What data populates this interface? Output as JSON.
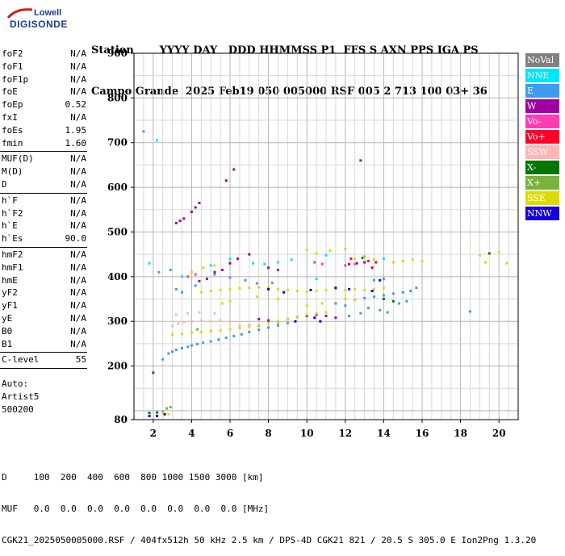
{
  "logo": {
    "line1": "Lowell",
    "line2": "DIGISONDE"
  },
  "header": {
    "labels": "Station       YYYY DAY   DDD HHMMSS P1  FFS S AXN PPS IGA PS",
    "values": "Campo Grande  2025 Feb19 050 005000 RSF 005 2 713 100 03+ 36"
  },
  "params": {
    "group1": [
      {
        "k": "foF2",
        "v": "N/A"
      },
      {
        "k": "foF1",
        "v": "N/A"
      },
      {
        "k": "foF1p",
        "v": "N/A"
      },
      {
        "k": "foE",
        "v": "N/A"
      },
      {
        "k": "foEp",
        "v": "0.52"
      },
      {
        "k": "fxI",
        "v": "N/A"
      },
      {
        "k": "foEs",
        "v": "1.95"
      },
      {
        "k": "fmin",
        "v": "1.60"
      }
    ],
    "group2": [
      {
        "k": "MUF(D)",
        "v": "N/A"
      },
      {
        "k": "M(D)",
        "v": "N/A"
      },
      {
        "k": "D",
        "v": "N/A"
      }
    ],
    "group3": [
      {
        "k": "h`F",
        "v": "N/A"
      },
      {
        "k": "h`F2",
        "v": "N/A"
      },
      {
        "k": "h`E",
        "v": "N/A"
      },
      {
        "k": "h`Es",
        "v": "90.0"
      }
    ],
    "group4": [
      {
        "k": "hmF2",
        "v": "N/A"
      },
      {
        "k": "hmF1",
        "v": "N/A"
      },
      {
        "k": "hmE",
        "v": "N/A"
      },
      {
        "k": "yF2",
        "v": "N/A"
      },
      {
        "k": "yF1",
        "v": "N/A"
      },
      {
        "k": "yE",
        "v": "N/A"
      },
      {
        "k": "B0",
        "v": "N/A"
      },
      {
        "k": "B1",
        "v": "N/A"
      }
    ],
    "group5": [
      {
        "k": "C-level",
        "v": "55"
      }
    ],
    "auto": [
      "Auto:",
      "Artist5",
      "500200"
    ]
  },
  "legend": [
    {
      "label": "NoVal",
      "color": "#808080"
    },
    {
      "label": "NNE",
      "color": "#00e5ff"
    },
    {
      "label": "E",
      "color": "#3c9cf0"
    },
    {
      "label": "W",
      "color": "#a000a0"
    },
    {
      "label": "Vo-",
      "color": "#ff3cb4"
    },
    {
      "label": "Vo+",
      "color": "#ff0028"
    },
    {
      "label": "SSW",
      "color": "#ffb4b4"
    },
    {
      "label": "X-",
      "color": "#007800"
    },
    {
      "label": "X+",
      "color": "#78b43c"
    },
    {
      "label": "SSE",
      "color": "#dcdc00"
    },
    {
      "label": "NNW",
      "color": "#1400dc"
    }
  ],
  "footer": {
    "line1": "D     100  200  400  600  800 1000 1500 3000 [km]",
    "line2": "MUF   0.0  0.0  0.0  0.0  0.0  0.0  0.0  0.0 [MHz]",
    "line3": "CGK21_2025050005000.RSF / 404fx512h 50 kHz 2.5 km / DPS-4D CGK21 821 / 20.5 S 305.0 E Ion2Png 1.3.20"
  },
  "chart_data": {
    "type": "scatter",
    "xlim": [
      1,
      21
    ],
    "ylim": [
      80,
      900
    ],
    "x_ticks": [
      2,
      4,
      6,
      8,
      10,
      12,
      14,
      16,
      18,
      20
    ],
    "y_ticks": [
      80,
      200,
      300,
      400,
      500,
      600,
      700,
      800,
      900
    ],
    "grid": true,
    "legend_position": "right",
    "series": [
      {
        "name": "E",
        "points": [
          [
            2.5,
            215
          ],
          [
            2.8,
            228
          ],
          [
            3.0,
            232
          ],
          [
            3.2,
            236
          ],
          [
            3.5,
            240
          ],
          [
            3.8,
            243
          ],
          [
            4.0,
            246
          ],
          [
            4.3,
            249
          ],
          [
            4.6,
            252
          ],
          [
            5.0,
            255
          ],
          [
            5.4,
            259
          ],
          [
            5.8,
            263
          ],
          [
            6.2,
            267
          ],
          [
            6.6,
            271
          ],
          [
            7.0,
            276
          ],
          [
            7.5,
            281
          ],
          [
            8.0,
            286
          ],
          [
            8.5,
            291
          ],
          [
            9.0,
            296
          ],
          [
            2.3,
            410
          ],
          [
            2.9,
            415
          ],
          [
            3.2,
            372
          ],
          [
            3.5,
            365
          ],
          [
            4.2,
            380
          ],
          [
            4.8,
            395
          ],
          [
            5.2,
            405
          ],
          [
            6.0,
            398
          ],
          [
            6.8,
            392
          ],
          [
            7.4,
            385
          ],
          [
            8.2,
            386
          ],
          [
            11.5,
            340
          ],
          [
            12.0,
            335
          ],
          [
            12.5,
            348
          ],
          [
            13.0,
            352
          ],
          [
            13.5,
            355
          ],
          [
            14.0,
            358
          ],
          [
            14.5,
            362
          ],
          [
            15.0,
            365
          ],
          [
            15.4,
            368
          ],
          [
            15.7,
            375
          ],
          [
            13.2,
            330
          ],
          [
            13.8,
            325
          ],
          [
            14.2,
            320
          ],
          [
            14.8,
            340
          ],
          [
            15.2,
            345
          ],
          [
            12.2,
            312
          ],
          [
            12.8,
            318
          ],
          [
            1.5,
            725
          ],
          [
            13.5,
            392
          ],
          [
            14.0,
            395
          ],
          [
            18.5,
            322
          ]
        ]
      },
      {
        "name": "NNE",
        "points": [
          [
            3.5,
            400
          ],
          [
            4.0,
            410
          ],
          [
            5.0,
            425
          ],
          [
            6.0,
            440
          ],
          [
            7.2,
            430
          ],
          [
            7.8,
            428
          ],
          [
            8.5,
            432
          ],
          [
            9.2,
            438
          ],
          [
            2.2,
            705
          ],
          [
            11.0,
            448
          ],
          [
            13.0,
            445
          ],
          [
            14.0,
            440
          ],
          [
            10.5,
            395
          ],
          [
            1.8,
            430
          ]
        ]
      },
      {
        "name": "W",
        "points": [
          [
            3.2,
            520
          ],
          [
            3.4,
            525
          ],
          [
            3.6,
            530
          ],
          [
            4.0,
            545
          ],
          [
            4.2,
            555
          ],
          [
            4.4,
            565
          ],
          [
            6.2,
            640
          ],
          [
            5.8,
            615
          ],
          [
            4.4,
            390
          ],
          [
            4.8,
            395
          ],
          [
            5.2,
            410
          ],
          [
            5.6,
            415
          ],
          [
            6.0,
            430
          ],
          [
            6.4,
            440
          ],
          [
            7.0,
            450
          ],
          [
            8.5,
            300
          ],
          [
            9.0,
            305
          ],
          [
            9.5,
            310
          ],
          [
            10.0,
            312
          ],
          [
            10.5,
            315
          ],
          [
            11.0,
            312
          ],
          [
            11.5,
            308
          ],
          [
            8.0,
            420
          ],
          [
            8.5,
            415
          ],
          [
            12.2,
            428
          ],
          [
            12.6,
            430
          ],
          [
            13.0,
            432
          ],
          [
            7.5,
            305
          ],
          [
            8.0,
            302
          ],
          [
            13.4,
            420
          ]
        ]
      },
      {
        "name": "Vo-",
        "points": [
          [
            3.8,
            400
          ],
          [
            4.2,
            405
          ],
          [
            10.4,
            432
          ],
          [
            10.8,
            428
          ],
          [
            12.0,
            425
          ],
          [
            12.5,
            428
          ]
        ]
      },
      {
        "name": "Vo+",
        "points": [
          [
            13.2,
            435
          ],
          [
            13.6,
            432
          ],
          [
            12.3,
            440
          ]
        ]
      },
      {
        "name": "SSW",
        "points": [
          [
            3.0,
            290
          ],
          [
            3.3,
            295
          ],
          [
            3.6,
            298
          ],
          [
            4.0,
            300
          ],
          [
            4.5,
            302
          ],
          [
            5.0,
            300
          ],
          [
            5.5,
            302
          ],
          [
            6.0,
            300
          ],
          [
            3.2,
            315
          ],
          [
            3.8,
            318
          ],
          [
            4.4,
            320
          ],
          [
            5.2,
            318
          ],
          [
            6.5,
            290
          ],
          [
            7.0,
            292
          ]
        ]
      },
      {
        "name": "X-",
        "points": [
          [
            12.8,
            660
          ],
          [
            2.0,
            185
          ],
          [
            1.8,
            95
          ],
          [
            2.2,
            96
          ],
          [
            14.0,
            350
          ],
          [
            14.5,
            345
          ],
          [
            12.9,
            442
          ],
          [
            19.5,
            452
          ]
        ]
      },
      {
        "name": "X+",
        "points": [
          [
            2.5,
            98
          ],
          [
            2.7,
            105
          ],
          [
            2.9,
            108
          ],
          [
            4.3,
            282
          ],
          [
            5.0,
            278
          ],
          [
            7.5,
            290
          ],
          [
            8.5,
            298
          ]
        ]
      },
      {
        "name": "SSE",
        "points": [
          [
            3.0,
            270
          ],
          [
            3.5,
            272
          ],
          [
            4.0,
            275
          ],
          [
            4.5,
            276
          ],
          [
            5.0,
            278
          ],
          [
            5.5,
            280
          ],
          [
            6.0,
            282
          ],
          [
            6.5,
            285
          ],
          [
            7.0,
            288
          ],
          [
            7.5,
            292
          ],
          [
            8.0,
            296
          ],
          [
            8.5,
            300
          ],
          [
            9.0,
            305
          ],
          [
            9.5,
            310
          ],
          [
            10.0,
            315
          ],
          [
            10.5,
            318
          ],
          [
            11.0,
            320
          ],
          [
            4.5,
            365
          ],
          [
            5.0,
            368
          ],
          [
            5.5,
            370
          ],
          [
            6.0,
            372
          ],
          [
            6.5,
            374
          ],
          [
            7.0,
            375
          ],
          [
            7.5,
            376
          ],
          [
            8.0,
            375
          ],
          [
            8.5,
            372
          ],
          [
            9.0,
            370
          ],
          [
            9.5,
            368
          ],
          [
            10.0,
            366
          ],
          [
            10.5,
            368
          ],
          [
            11.0,
            370
          ],
          [
            11.5,
            372
          ],
          [
            12.0,
            370
          ],
          [
            12.5,
            372
          ],
          [
            13.0,
            370
          ],
          [
            13.5,
            372
          ],
          [
            14.0,
            375
          ],
          [
            10.0,
            460
          ],
          [
            10.5,
            452
          ],
          [
            11.2,
            458
          ],
          [
            12.0,
            462
          ],
          [
            12.5,
            440
          ],
          [
            13.0,
            442
          ],
          [
            13.5,
            438
          ],
          [
            14.5,
            432
          ],
          [
            15.0,
            435
          ],
          [
            15.5,
            438
          ],
          [
            16.0,
            435
          ],
          [
            19.0,
            448
          ],
          [
            19.3,
            432
          ],
          [
            20.4,
            430
          ],
          [
            4.0,
            410
          ],
          [
            4.6,
            420
          ],
          [
            5.2,
            425
          ],
          [
            6.0,
            345
          ],
          [
            5.6,
            340
          ],
          [
            7.4,
            355
          ],
          [
            8.5,
            350
          ],
          [
            10.0,
            335
          ],
          [
            10.8,
            340
          ],
          [
            12.0,
            350
          ],
          [
            12.5,
            348
          ],
          [
            2.5,
            95
          ],
          [
            2.8,
            92
          ],
          [
            20.0,
            455
          ]
        ]
      },
      {
        "name": "NNW",
        "points": [
          [
            10.2,
            370
          ],
          [
            11.5,
            375
          ],
          [
            12.2,
            372
          ],
          [
            13.4,
            368
          ],
          [
            13.8,
            392
          ],
          [
            8.0,
            372
          ],
          [
            8.8,
            365
          ],
          [
            9.4,
            300
          ],
          [
            10.4,
            308
          ],
          [
            10.7,
            300
          ],
          [
            1.8,
            88
          ],
          [
            2.2,
            88
          ],
          [
            2.6,
            92
          ]
        ]
      }
    ]
  }
}
